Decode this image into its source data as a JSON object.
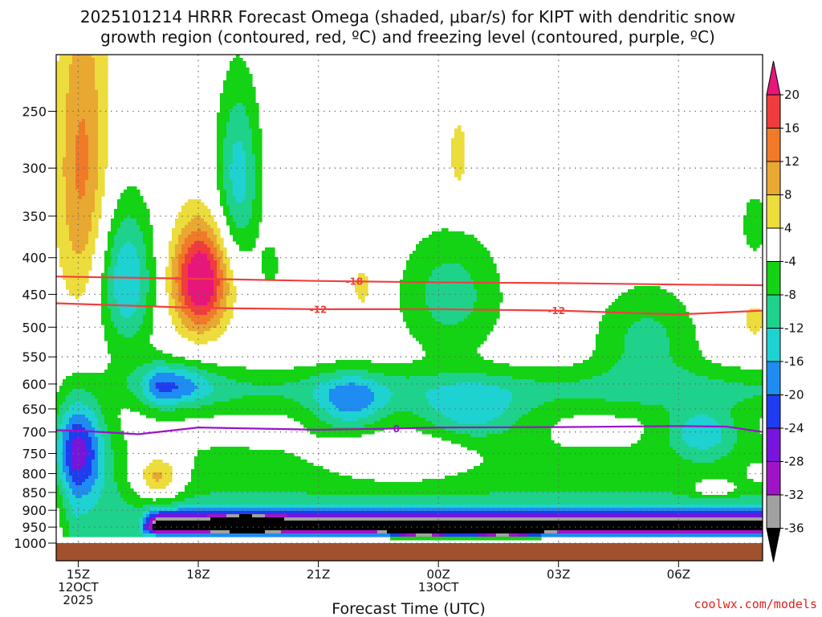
{
  "chart_data": {
    "type": "heatmap",
    "title_line1": "2025101214 HRRR Forecast Omega (shaded, μbar/s) for KIPT with dendritic snow",
    "title_line2": "growth region (contoured, red, ºC) and freezing level (contoured, purple, ºC)",
    "xlabel": "Forecast Time (UTC)",
    "credit": "coolwx.com/models",
    "x_range_hours": [
      -0.55,
      17.1
    ],
    "y_range_mb": [
      1000,
      200
    ],
    "x_ticks": [
      {
        "hour": 0,
        "lines": [
          "15Z",
          "12OCT",
          "2025"
        ]
      },
      {
        "hour": 3,
        "lines": [
          "18Z"
        ]
      },
      {
        "hour": 6,
        "lines": [
          "21Z"
        ]
      },
      {
        "hour": 9,
        "lines": [
          "00Z",
          "13OCT"
        ]
      },
      {
        "hour": 12,
        "lines": [
          "03Z"
        ]
      },
      {
        "hour": 15,
        "lines": [
          "06Z"
        ]
      }
    ],
    "y_ticks": [
      250,
      300,
      350,
      400,
      450,
      500,
      550,
      600,
      650,
      700,
      750,
      800,
      850,
      900,
      950,
      1000
    ],
    "colorbar": {
      "labels": [
        "20",
        "16",
        "12",
        "8",
        "4",
        "-4",
        "-8",
        "-12",
        "-16",
        "-20",
        "-24",
        "-28",
        "-32",
        "-36"
      ],
      "levels": [
        {
          "lo": 20,
          "hi": 99,
          "color": "#e8157a"
        },
        {
          "lo": 16,
          "hi": 20,
          "color": "#f03c3c"
        },
        {
          "lo": 12,
          "hi": 16,
          "color": "#f07a28"
        },
        {
          "lo": 8,
          "hi": 12,
          "color": "#e8a832"
        },
        {
          "lo": 4,
          "hi": 8,
          "color": "#ecdc3c"
        },
        {
          "lo": -4,
          "hi": 4,
          "color": "#ffffff"
        },
        {
          "lo": -8,
          "hi": -4,
          "color": "#14d214"
        },
        {
          "lo": -12,
          "hi": -8,
          "color": "#1ed28c"
        },
        {
          "lo": -16,
          "hi": -12,
          "color": "#1ed2d2"
        },
        {
          "lo": -20,
          "hi": -16,
          "color": "#1e8cf0"
        },
        {
          "lo": -24,
          "hi": -20,
          "color": "#1e3cf0"
        },
        {
          "lo": -28,
          "hi": -24,
          "color": "#7814dc"
        },
        {
          "lo": -32,
          "hi": -28,
          "color": "#a014c8"
        },
        {
          "lo": -36,
          "hi": -32,
          "color": "#a0a0a0"
        },
        {
          "lo": -99,
          "hi": -36,
          "color": "#000000"
        }
      ]
    },
    "omega_features": [
      {
        "kind": "ridge",
        "t0": -0.6,
        "t1": 17.2,
        "p0": 975,
        "p1": 975,
        "top": 660,
        "bottom": 985,
        "peak": -10
      },
      {
        "kind": "ridge",
        "t0": 1.5,
        "t1": 17.2,
        "p0": 952,
        "p1": 952,
        "top": 895,
        "bottom": 975,
        "peak": -34
      },
      {
        "kind": "ridge",
        "t0": 1.5,
        "t1": 17.2,
        "p0": 610,
        "p1": 610,
        "top": 555,
        "bottom": 665,
        "peak": -7
      },
      {
        "kind": "blob",
        "t": 0.0,
        "p": 740,
        "st": 0.65,
        "sp": 120,
        "peak": -22
      },
      {
        "kind": "blob",
        "t": 0.1,
        "p": 300,
        "st": 0.65,
        "sp": 160,
        "peak": 13
      },
      {
        "kind": "blob",
        "t": 1.2,
        "p": 430,
        "st": 0.7,
        "sp": 100,
        "peak": -16
      },
      {
        "kind": "blob",
        "t": 3.05,
        "p": 430,
        "st": 0.7,
        "sp": 75,
        "peak": 26
      },
      {
        "kind": "blob",
        "t": 4.0,
        "p": 310,
        "st": 0.55,
        "sp": 90,
        "peak": -14
      },
      {
        "kind": "blob",
        "t": 7.1,
        "p": 440,
        "st": 0.3,
        "sp": 40,
        "peak": 6
      },
      {
        "kind": "blob",
        "t": 2.0,
        "p": 810,
        "st": 0.6,
        "sp": 60,
        "peak": 15
      },
      {
        "kind": "blob",
        "t": 9.5,
        "p": 290,
        "st": 0.3,
        "sp": 45,
        "peak": 6
      },
      {
        "kind": "blob",
        "t": 9.3,
        "p": 450,
        "st": 1.3,
        "sp": 90,
        "peak": -10
      },
      {
        "kind": "blob",
        "t": 4.8,
        "p": 410,
        "st": 0.25,
        "sp": 30,
        "peak": -6
      },
      {
        "kind": "blob",
        "t": 2.2,
        "p": 600,
        "st": 1.1,
        "sp": 45,
        "peak": -13
      },
      {
        "kind": "blob",
        "t": 6.8,
        "p": 640,
        "st": 0.9,
        "sp": 60,
        "peak": -13
      },
      {
        "kind": "blob",
        "t": 9.8,
        "p": 660,
        "st": 1.4,
        "sp": 60,
        "peak": -11
      },
      {
        "kind": "blob",
        "t": 14.2,
        "p": 520,
        "st": 1.3,
        "sp": 90,
        "peak": -9
      },
      {
        "kind": "blob",
        "t": 15.6,
        "p": 700,
        "st": 0.9,
        "sp": 60,
        "peak": -12
      },
      {
        "kind": "blob",
        "t": 4.2,
        "p": 940,
        "st": 0.6,
        "sp": 20,
        "peak": -38
      },
      {
        "kind": "blob",
        "t": 8.6,
        "p": 960,
        "st": 0.6,
        "sp": 15,
        "peak": -42
      },
      {
        "kind": "blob",
        "t": 10.6,
        "p": 958,
        "st": 0.7,
        "sp": 16,
        "peak": -46
      },
      {
        "kind": "blob",
        "t": 16.9,
        "p": 360,
        "st": 0.35,
        "sp": 40,
        "peak": -7
      },
      {
        "kind": "blob",
        "t": 16.9,
        "p": 490,
        "st": 0.3,
        "sp": 30,
        "peak": 7
      },
      {
        "kind": "blob",
        "t": 15.9,
        "p": 838,
        "st": 0.5,
        "sp": 22,
        "peak": 10
      },
      {
        "kind": "blob",
        "t": 17.0,
        "p": 800,
        "st": 0.3,
        "sp": 25,
        "peak": 6
      },
      {
        "kind": "blob",
        "t": 8.0,
        "p": 760,
        "st": 1.6,
        "sp": 60,
        "peak": 8
      }
    ],
    "contours": [
      {
        "name": "-18 °C",
        "label": "-18",
        "color": "#f04040",
        "points": [
          [
            -0.55,
            425
          ],
          [
            3,
            428
          ],
          [
            6,
            431
          ],
          [
            9,
            433
          ],
          [
            12,
            434
          ],
          [
            15,
            436
          ],
          [
            17.1,
            437
          ]
        ],
        "label_at_hour": 6.9
      },
      {
        "name": "-12 °C",
        "label": "-12",
        "color": "#f04040",
        "points": [
          [
            -0.55,
            463
          ],
          [
            3,
            470
          ],
          [
            6,
            472
          ],
          [
            9,
            472
          ],
          [
            12,
            474
          ],
          [
            15,
            480
          ],
          [
            17.1,
            474
          ]
        ],
        "label_at_hour": 6.0,
        "label2_at_hour": 11.95
      },
      {
        "name": "0 °C freezing level",
        "label": "0",
        "color": "#9a14c8",
        "points": [
          [
            -0.55,
            696
          ],
          [
            0,
            697
          ],
          [
            1.5,
            705
          ],
          [
            3,
            690
          ],
          [
            6,
            695
          ],
          [
            7.5,
            693
          ],
          [
            9,
            690
          ],
          [
            12,
            689
          ],
          [
            15,
            687
          ],
          [
            16.2,
            688
          ],
          [
            17.1,
            700
          ]
        ],
        "label_at_hour": 7.95
      }
    ]
  }
}
